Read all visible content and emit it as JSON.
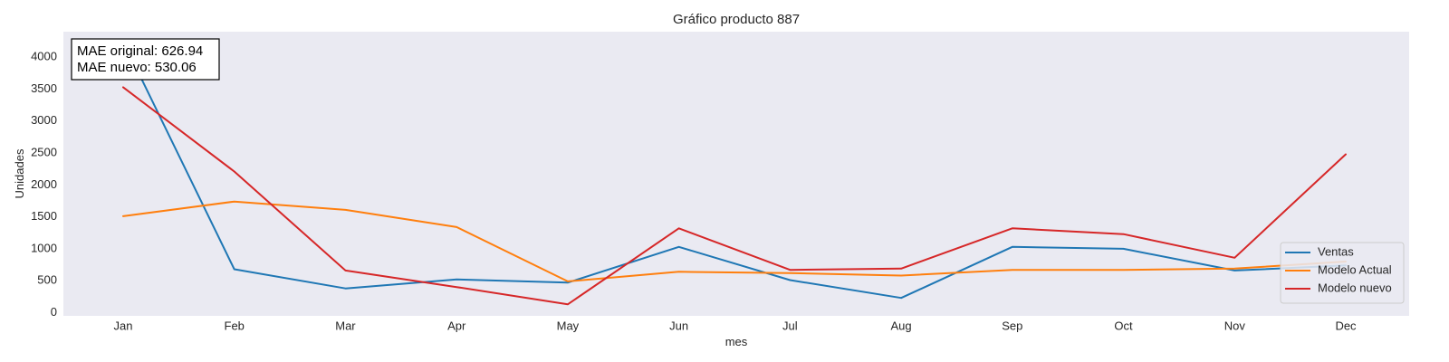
{
  "chart_data": {
    "type": "line",
    "title": "Gráfico producto 887",
    "xlabel": "mes",
    "ylabel": "Unidades",
    "categories": [
      "Jan",
      "Feb",
      "Mar",
      "Apr",
      "May",
      "Jun",
      "Jul",
      "Aug",
      "Sep",
      "Oct",
      "Nov",
      "Dec"
    ],
    "ylim": [
      -50,
      4400
    ],
    "yticks": [
      0,
      500,
      1000,
      1500,
      2000,
      2500,
      3000,
      3500,
      4000
    ],
    "grid": false,
    "legend_position": "lower-right",
    "background_color": "#eaeaf2",
    "series": [
      {
        "name": "Ventas",
        "color": "#1f77b4",
        "values": [
          4250,
          680,
          380,
          520,
          470,
          1030,
          510,
          230,
          1030,
          1000,
          660,
          740
        ]
      },
      {
        "name": "Modelo Actual",
        "color": "#ff7f0e",
        "values": [
          1510,
          1740,
          1610,
          1340,
          490,
          640,
          620,
          580,
          670,
          670,
          690,
          800
        ]
      },
      {
        "name": "Modelo nuevo",
        "color": "#d62728",
        "values": [
          3530,
          2210,
          660,
          400,
          130,
          1320,
          670,
          690,
          1320,
          1230,
          860,
          2480
        ]
      }
    ],
    "annotation": {
      "line1": "MAE original: 626.94",
      "line2": "MAE nuevo: 530.06"
    }
  }
}
